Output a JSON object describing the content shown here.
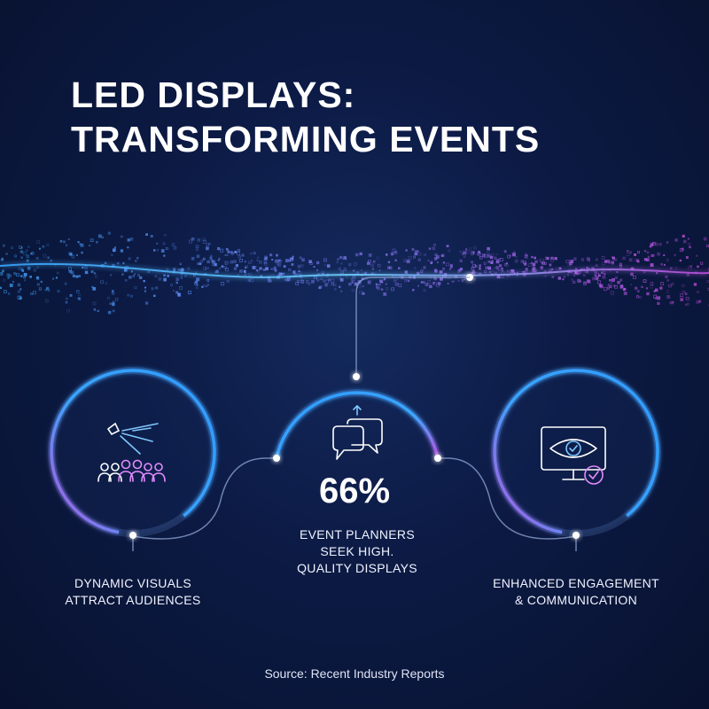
{
  "title": {
    "line1": "LED DISPLAYS:",
    "line2": "TRANSFORMING EVENTS"
  },
  "features": [
    {
      "icon": "spotlight-audience-icon",
      "lines": [
        "DYNAMIC VISUALS",
        "ATTRACT AUDIENCES"
      ]
    },
    {
      "icon": "chat-bubbles-icon",
      "stat": "66%",
      "lines": [
        "EVENT PLANNERS",
        "SEEK HIGH.",
        "QUALITY DISPLAYS"
      ]
    },
    {
      "icon": "eye-monitor-check-icon",
      "lines": [
        "ENHANCED ENGAGEMENT",
        "& COMMUNICATION"
      ]
    }
  ],
  "source": "Source: Recent Industry Reports",
  "colors": {
    "background": "#0c1a44",
    "accent_blue": "#3aa6ff",
    "accent_magenta": "#c04fe0",
    "text": "#ffffff"
  }
}
